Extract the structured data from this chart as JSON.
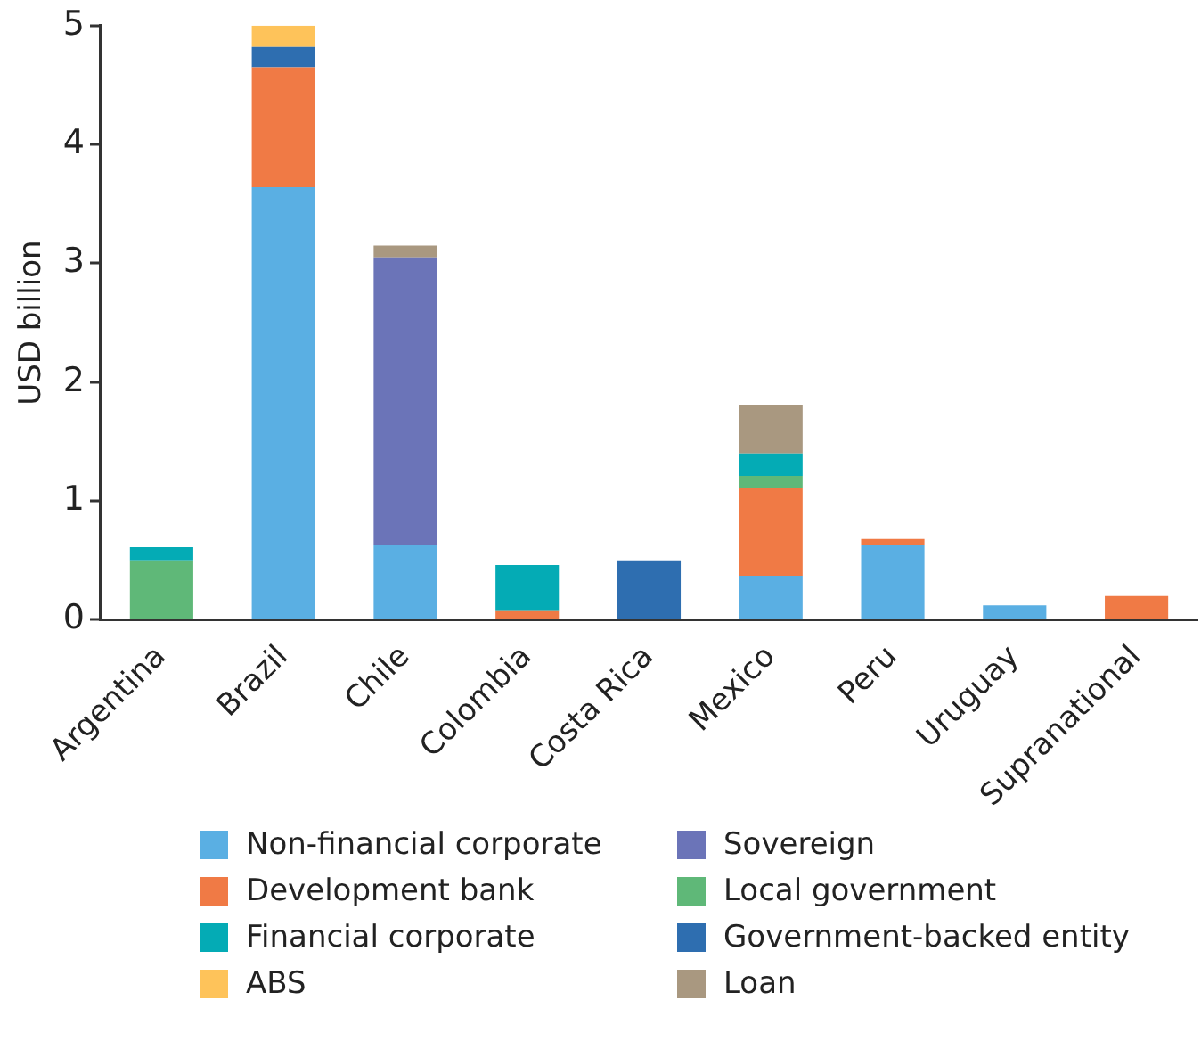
{
  "chart_data": {
    "type": "bar",
    "stacked": true,
    "ylabel": "USD billion",
    "categories": [
      "Argentina",
      "Brazil",
      "Chile",
      "Colombia",
      "Costa Rica",
      "Mexico",
      "Peru",
      "Uruguay",
      "Supranational"
    ],
    "ylim": [
      0,
      5
    ],
    "yticks": [
      0,
      1,
      2,
      3,
      4,
      5
    ],
    "grid": false,
    "legend": "bottom",
    "series": [
      {
        "name": "Non-financial corporate",
        "color": "#5aafe3",
        "values": [
          null,
          3.64,
          0.63,
          null,
          null,
          0.37,
          0.63,
          0.12,
          null
        ]
      },
      {
        "name": "Sovereign",
        "color": "#6b74b8",
        "values": [
          null,
          null,
          2.42,
          null,
          null,
          null,
          null,
          null,
          null
        ]
      },
      {
        "name": "Development bank",
        "color": "#f07a45",
        "values": [
          null,
          1.01,
          null,
          0.08,
          null,
          0.74,
          0.05,
          null,
          0.2
        ]
      },
      {
        "name": "Local government",
        "color": "#5fb878",
        "values": [
          0.5,
          null,
          null,
          null,
          null,
          0.1,
          null,
          null,
          null
        ]
      },
      {
        "name": "Financial corporate",
        "color": "#04abb5",
        "values": [
          0.11,
          null,
          null,
          0.38,
          null,
          0.19,
          null,
          null,
          null
        ]
      },
      {
        "name": "Government-backed entity",
        "color": "#2e6eb0",
        "values": [
          null,
          0.17,
          null,
          null,
          0.5,
          null,
          null,
          null,
          null
        ]
      },
      {
        "name": "ABS",
        "color": "#fec35a",
        "values": [
          null,
          0.18,
          null,
          null,
          null,
          null,
          null,
          null,
          null
        ]
      },
      {
        "name": "Loan",
        "color": "#a99880",
        "values": [
          null,
          null,
          0.1,
          null,
          null,
          0.41,
          null,
          null,
          null
        ]
      }
    ]
  }
}
